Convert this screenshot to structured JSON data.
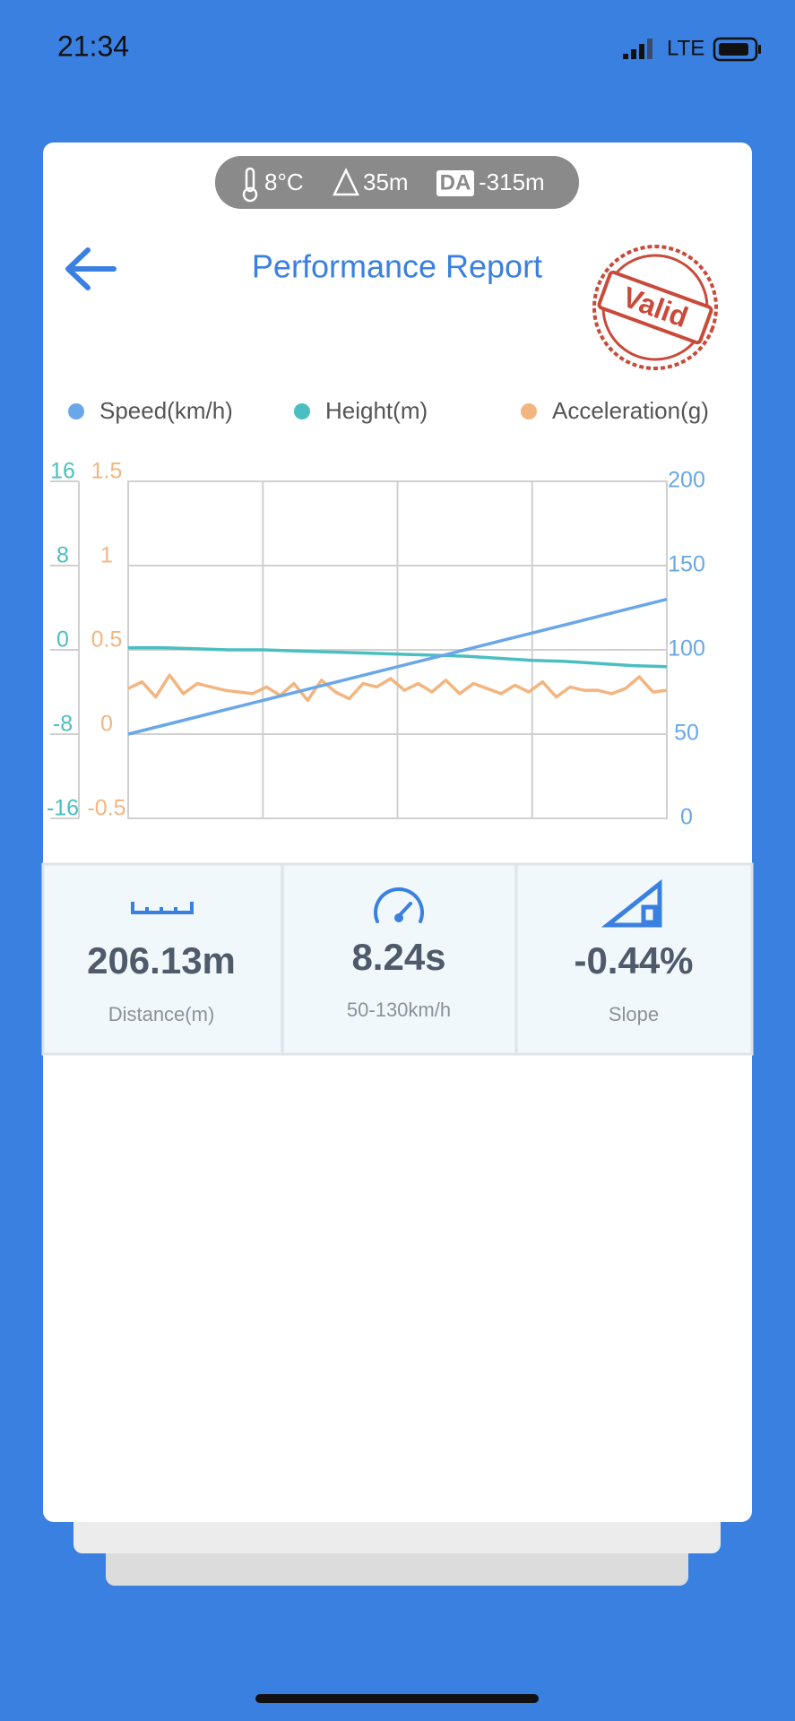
{
  "status_bar": {
    "time": "21:34",
    "network": "LTE"
  },
  "conditions": {
    "temperature": "8°C",
    "elevation": "35m",
    "da_badge": "DA",
    "density_altitude": "-315m"
  },
  "header": {
    "title": "Performance Report",
    "stamp": "Valid"
  },
  "chart_data": {
    "type": "line",
    "series": [
      {
        "name": "Speed(km/h)",
        "color": "#6aa7e8",
        "axis": "y",
        "values": [
          50,
          58,
          66,
          74,
          82,
          90,
          98,
          106,
          114,
          122,
          130
        ]
      },
      {
        "name": "Height(m)",
        "color": "#4bbfc0",
        "axis": "y2",
        "values": [
          0.2,
          0.2,
          0.1,
          0,
          0,
          -0.1,
          -0.2,
          -0.3,
          -0.4,
          -0.5,
          -0.6,
          -0.8,
          -1,
          -1.1,
          -1.3,
          -1.5,
          -1.6
        ]
      },
      {
        "name": "Acceleration(g)",
        "color": "#f3b57f",
        "axis": "y3",
        "values": [
          0.27,
          0.31,
          0.22,
          0.35,
          0.24,
          0.3,
          0.28,
          0.26,
          0.25,
          0.24,
          0.28,
          0.23,
          0.3,
          0.2,
          0.32,
          0.25,
          0.21,
          0.3,
          0.28,
          0.33,
          0.26,
          0.3,
          0.25,
          0.32,
          0.24,
          0.3,
          0.27,
          0.24,
          0.29,
          0.25,
          0.31,
          0.22,
          0.28,
          0.26,
          0.26,
          0.24,
          0.27,
          0.34,
          0.25,
          0.26
        ]
      }
    ],
    "ylim": [
      0,
      200
    ],
    "yticks": [
      0,
      50,
      100,
      150,
      200
    ],
    "y2lim": [
      -16,
      16
    ],
    "y2ticks": [
      -16,
      -8,
      0,
      8,
      16
    ],
    "y3lim": [
      -0.5,
      1.5
    ],
    "y3ticks": [
      -0.5,
      0,
      0.5,
      1,
      1.5
    ],
    "grid": true
  },
  "stats": [
    {
      "value": "206.13m",
      "label": "Distance(m)"
    },
    {
      "value": "8.24s",
      "label": "50-130km/h"
    },
    {
      "value": "-0.44%",
      "label": "Slope"
    }
  ]
}
